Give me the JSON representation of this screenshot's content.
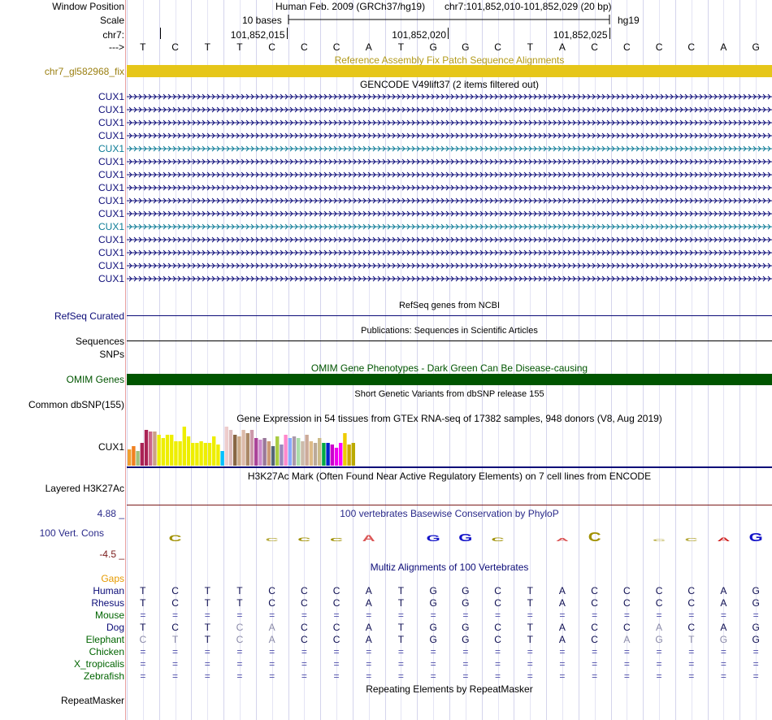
{
  "header": {
    "window_position_label": "Window Position",
    "assembly": "Human Feb. 2009 (GRCh37/hg19)",
    "position": "chr7:101,852,010-101,852,029 (20 bp)",
    "scale_label": "Scale",
    "scale_value": "10 bases",
    "db": "hg19",
    "chrom_label": "chr7:",
    "ticks": [
      "101,852,015",
      "101,852,020",
      "101,852,025"
    ],
    "strand_label": "--->",
    "sequence": [
      "T",
      "C",
      "T",
      "T",
      "C",
      "C",
      "C",
      "A",
      "T",
      "G",
      "G",
      "C",
      "T",
      "A",
      "C",
      "C",
      "C",
      "C",
      "A",
      "G"
    ]
  },
  "tracks": {
    "fix_patch": {
      "title": "Reference Assembly Fix Patch Sequence Alignments",
      "label": "chr7_gl582968_fix",
      "color": "#e6c619"
    },
    "gencode": {
      "title": "GENCODE V49lift37 (2 items filtered out)",
      "items": [
        {
          "name": "CUX1",
          "color": "#0c0c78"
        },
        {
          "name": "CUX1",
          "color": "#0c0c78"
        },
        {
          "name": "CUX1",
          "color": "#0c0c78"
        },
        {
          "name": "CUX1",
          "color": "#0c0c78"
        },
        {
          "name": "CUX1",
          "color": "#0c7b96"
        },
        {
          "name": "CUX1",
          "color": "#0c0c78"
        },
        {
          "name": "CUX1",
          "color": "#0c0c78"
        },
        {
          "name": "CUX1",
          "color": "#0c0c78"
        },
        {
          "name": "CUX1",
          "color": "#0c0c78"
        },
        {
          "name": "CUX1",
          "color": "#0c0c78"
        },
        {
          "name": "CUX1",
          "color": "#0c7b96"
        },
        {
          "name": "CUX1",
          "color": "#0c0c78"
        },
        {
          "name": "CUX1",
          "color": "#0c0c78"
        },
        {
          "name": "CUX1",
          "color": "#0c0c78"
        },
        {
          "name": "CUX1",
          "color": "#0c0c78"
        }
      ]
    },
    "refseq": {
      "title": "RefSeq genes from NCBI",
      "label": "RefSeq Curated"
    },
    "publications": {
      "title": "Publications: Sequences in Scientific Articles",
      "label": "Sequences"
    },
    "snps": {
      "label": "SNPs"
    },
    "omim": {
      "title": "OMIM Gene Phenotypes - Dark Green Can Be Disease-causing",
      "label": "OMIM Genes",
      "color": "#005500"
    },
    "dbsnp": {
      "title": "Short Genetic Variants from dbSNP release 155",
      "label": "Common dbSNP(155)"
    },
    "gtex": {
      "title": "Gene Expression in 54 tissues from GTEx RNA-seq of 17382 samples, 948 donors (V8, Aug 2019)",
      "label": "CUX1",
      "values": [
        20,
        24,
        18,
        28,
        44,
        42,
        42,
        38,
        34,
        38,
        38,
        30,
        30,
        48,
        36,
        28,
        28,
        30,
        28,
        28,
        36,
        26,
        18,
        48,
        44,
        38,
        36,
        44,
        40,
        44,
        34,
        32,
        34,
        30,
        24,
        36,
        26,
        38,
        34,
        36,
        34,
        30,
        38,
        30,
        28,
        34,
        28,
        28,
        26,
        22,
        28,
        40,
        26,
        28
      ],
      "colors": [
        "#f0a030",
        "#f08020",
        "#9ec07c",
        "#aa2255",
        "#aa2255",
        "#cc6688",
        "#cca088",
        "#eeee00",
        "#eeee00",
        "#eeee00",
        "#eeee00",
        "#eeee00",
        "#eeee00",
        "#eeee00",
        "#eeee00",
        "#eeee00",
        "#eeee00",
        "#eeee00",
        "#eeee00",
        "#eeee00",
        "#eeee00",
        "#eeee00",
        "#00c0ff",
        "#eecccc",
        "#ddbbbb",
        "#886644",
        "#ccaa88",
        "#ddbbaa",
        "#aa8866",
        "#cc99aa",
        "#aa4499",
        "#cc88cc",
        "#997799",
        "#cc9977",
        "#556677",
        "#aacc44",
        "#9988bb",
        "#ff88cc",
        "#88aaff",
        "#aa99aa",
        "#aaddaa",
        "#ccbbaa",
        "#ccaa99",
        "#ddbb88",
        "#bbaa99",
        "#ccbb88",
        "#00aa44",
        "#0022cc",
        "#cc00cc",
        "#ee00ee",
        "#ff00ff",
        "#eecc00",
        "#ccaa00",
        "#bbaa00"
      ]
    },
    "h3k27ac": {
      "title": "H3K27Ac Mark (Often Found Near Active Regulatory Elements) on 7 cell lines from ENCODE",
      "label": "Layered H3K27Ac"
    },
    "phylop": {
      "title": "100 vertebrates Basewise Conservation by PhyloP",
      "label": "100 Vert. Cons",
      "ymax": "4.88 _",
      "ymin": "-4.5 _",
      "scores": [
        0,
        2.5,
        0,
        0,
        -1.2,
        1.5,
        1.2,
        -2.5,
        0,
        2.5,
        2.8,
        1.5,
        0,
        -1.2,
        3.5,
        0,
        -0.8,
        -1.2,
        1.5,
        3.2
      ]
    },
    "multiz": {
      "title": "Multiz Alignments of 100 Vertebrates",
      "gaps_label": "Gaps",
      "species": [
        {
          "name": "Human",
          "color": "#0c0c78",
          "seq": "TCTTCCCATGGCTACCCCAG",
          "gray": ""
        },
        {
          "name": "Rhesus",
          "color": "#0c0c78",
          "seq": "TCTTCCCATGGCTACCCCAG",
          "gray": ""
        },
        {
          "name": "Mouse",
          "color": "#006400",
          "seq": "====================",
          "gray": ""
        },
        {
          "name": "Dog",
          "color": "#0c0c78",
          "seq": "TCTCACCATGGCTACCACAG",
          "gray": "00011000000000001000"
        },
        {
          "name": "Elephant",
          "color": "#006400",
          "seq": "CTTCACCATGGCTACAGTGG",
          "gray": "11011000000000011110"
        },
        {
          "name": "Chicken",
          "color": "#006400",
          "seq": "====================",
          "gray": ""
        },
        {
          "name": "X_tropicalis",
          "color": "#006400",
          "seq": "====================",
          "gray": ""
        },
        {
          "name": "Zebrafish",
          "color": "#006400",
          "seq": "====================",
          "gray": ""
        }
      ]
    },
    "repeatmasker": {
      "title": "Repeating Elements by RepeatMasker",
      "label": "RepeatMasker"
    }
  }
}
